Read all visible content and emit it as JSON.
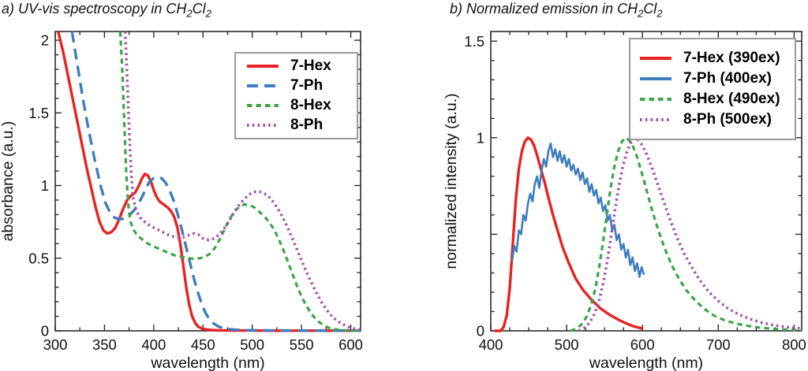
{
  "chart_data": [
    {
      "type": "line",
      "title": "a) UV-vis spectroscopy in CH2Cl2",
      "title_parts": [
        "a) UV-vis spectroscopy in CH",
        "2",
        "Cl",
        "2"
      ],
      "xlabel": "wavelength (nm)",
      "ylabel": "absorbance (a.u.)",
      "xlim": [
        300,
        610
      ],
      "ylim": [
        0,
        2.06
      ],
      "xticks": [
        300,
        350,
        400,
        450,
        500,
        550,
        600
      ],
      "xtick_labels": [
        "300",
        "350",
        "400",
        "450",
        "500",
        "550",
        "600"
      ],
      "yticks": [
        0,
        0.5,
        1,
        1.5,
        2
      ],
      "ytick_labels": [
        "0",
        "0.5",
        "1",
        "1.5",
        "2"
      ],
      "x_minor_step": 25,
      "y_minor_step": 0.1,
      "grid": false,
      "legend_position": "top-right",
      "series": [
        {
          "name": "7-Hex",
          "color": "#e62321",
          "style": "solid",
          "line_width": 3.4,
          "x": [
            303,
            308,
            314,
            320,
            326,
            332,
            337,
            341,
            345,
            349,
            353,
            357,
            361,
            365,
            369,
            373,
            377,
            381,
            385,
            388,
            391,
            394,
            397,
            400,
            403,
            406,
            410,
            414,
            418,
            421,
            424,
            427,
            430,
            433,
            436,
            439,
            442,
            445,
            449,
            454,
            460,
            470,
            485,
            500,
            520,
            550,
            580,
            610
          ],
          "y": [
            2.06,
            1.92,
            1.72,
            1.52,
            1.32,
            1.12,
            0.97,
            0.85,
            0.75,
            0.69,
            0.67,
            0.68,
            0.71,
            0.77,
            0.84,
            0.9,
            0.93,
            0.95,
            1.0,
            1.05,
            1.08,
            1.07,
            1.03,
            0.97,
            0.92,
            0.89,
            0.87,
            0.85,
            0.82,
            0.78,
            0.71,
            0.6,
            0.45,
            0.3,
            0.18,
            0.1,
            0.055,
            0.03,
            0.015,
            0.008,
            0.005,
            0.003,
            0.002,
            0.002,
            0.001,
            0.001,
            0.001,
            0.001
          ]
        },
        {
          "name": "7-Ph",
          "color": "#3e7dbf",
          "style": "dashed",
          "line_width": 3.4,
          "x": [
            317,
            322,
            328,
            334,
            340,
            346,
            351,
            356,
            360,
            364,
            368,
            372,
            376,
            380,
            384,
            388,
            392,
            396,
            400,
            404,
            408,
            412,
            416,
            420,
            424,
            428,
            432,
            436,
            440,
            444,
            448,
            452,
            456,
            460,
            465,
            470,
            476,
            484,
            495,
            510,
            530,
            560,
            610
          ],
          "y": [
            2.06,
            1.85,
            1.6,
            1.38,
            1.18,
            1.0,
            0.88,
            0.81,
            0.78,
            0.77,
            0.77,
            0.78,
            0.8,
            0.83,
            0.87,
            0.92,
            0.98,
            1.03,
            1.05,
            1.06,
            1.05,
            1.02,
            0.97,
            0.9,
            0.81,
            0.71,
            0.6,
            0.49,
            0.38,
            0.28,
            0.2,
            0.13,
            0.085,
            0.055,
            0.032,
            0.02,
            0.012,
            0.007,
            0.004,
            0.003,
            0.002,
            0.001,
            0.001
          ]
        },
        {
          "name": "8-Hex",
          "color": "#3ea449",
          "style": "shortdash",
          "line_width": 3.2,
          "x": [
            366,
            368,
            370,
            372,
            374,
            376,
            379,
            383,
            388,
            394,
            400,
            407,
            414,
            421,
            428,
            435,
            441,
            447,
            452,
            457,
            462,
            467,
            472,
            477,
            482,
            487,
            492,
            497,
            502,
            507,
            512,
            517,
            522,
            527,
            532,
            537,
            542,
            547,
            552,
            557,
            562,
            567,
            572,
            577,
            583,
            590,
            600,
            610
          ],
          "y": [
            2.06,
            1.8,
            1.45,
            1.1,
            0.88,
            0.76,
            0.7,
            0.66,
            0.63,
            0.6,
            0.58,
            0.56,
            0.54,
            0.52,
            0.51,
            0.5,
            0.495,
            0.5,
            0.51,
            0.53,
            0.57,
            0.63,
            0.7,
            0.77,
            0.82,
            0.855,
            0.87,
            0.865,
            0.85,
            0.82,
            0.79,
            0.75,
            0.7,
            0.63,
            0.55,
            0.46,
            0.37,
            0.28,
            0.21,
            0.15,
            0.1,
            0.065,
            0.04,
            0.022,
            0.012,
            0.005,
            0.002,
            0.001
          ]
        },
        {
          "name": "8-Ph",
          "color": "#a650ab",
          "style": "dotted",
          "line_width": 3.6,
          "x": [
            371,
            373,
            375,
            377,
            379,
            382,
            386,
            391,
            397,
            403,
            409,
            415,
            421,
            426,
            431,
            436,
            441,
            446,
            451,
            456,
            461,
            466,
            471,
            476,
            481,
            486,
            491,
            496,
            501,
            506,
            511,
            516,
            521,
            526,
            531,
            536,
            541,
            546,
            551,
            556,
            561,
            566,
            571,
            576,
            581,
            586,
            592,
            598,
            605,
            610
          ],
          "y": [
            2.06,
            1.75,
            1.4,
            1.1,
            0.92,
            0.83,
            0.78,
            0.75,
            0.72,
            0.7,
            0.68,
            0.66,
            0.645,
            0.64,
            0.645,
            0.66,
            0.67,
            0.66,
            0.63,
            0.625,
            0.635,
            0.66,
            0.7,
            0.75,
            0.81,
            0.86,
            0.9,
            0.935,
            0.955,
            0.96,
            0.95,
            0.93,
            0.89,
            0.84,
            0.78,
            0.71,
            0.63,
            0.55,
            0.47,
            0.39,
            0.32,
            0.25,
            0.19,
            0.14,
            0.1,
            0.07,
            0.045,
            0.025,
            0.012,
            0.006
          ]
        }
      ]
    },
    {
      "type": "line",
      "title": "b) Normalized emission in CH2Cl2",
      "title_parts": [
        "b) Normalized emission in CH",
        "2",
        "Cl",
        "2"
      ],
      "xlabel": "wavelength (nm)",
      "ylabel": "normalized intensity (a.u.)",
      "xlim": [
        400,
        810
      ],
      "ylim": [
        0,
        1.55
      ],
      "xticks": [
        400,
        500,
        600,
        700,
        800
      ],
      "xtick_labels": [
        "400",
        "500",
        "600",
        "700",
        "800"
      ],
      "yticks": [
        0,
        0.5,
        1,
        1.5
      ],
      "ytick_labels": [
        "0",
        "",
        "1",
        "1.5"
      ],
      "x_minor_step": 25,
      "y_minor_step": 0.1,
      "grid": false,
      "legend_position": "top-right",
      "series": [
        {
          "name": "7-Hex (390ex)",
          "color": "#e62321",
          "style": "solid",
          "line_width": 3.4,
          "x": [
            405,
            413,
            417,
            421,
            425,
            429,
            433,
            437,
            441,
            445,
            449,
            453,
            457,
            461,
            466,
            471,
            476,
            482,
            488,
            495,
            503,
            512,
            522,
            533,
            545,
            558,
            572,
            587,
            600
          ],
          "y": [
            0.0,
            0.0,
            0.02,
            0.08,
            0.22,
            0.45,
            0.68,
            0.84,
            0.93,
            0.98,
            1.0,
            0.99,
            0.96,
            0.91,
            0.84,
            0.77,
            0.69,
            0.6,
            0.52,
            0.43,
            0.35,
            0.27,
            0.21,
            0.16,
            0.115,
            0.08,
            0.05,
            0.025,
            0.012
          ]
        },
        {
          "name": "7-Ph (400ex)",
          "color": "#3e7dbf",
          "style": "solid",
          "line_width": 2.6,
          "x": [
            428,
            431,
            434,
            437,
            440,
            443,
            446,
            449,
            452,
            455,
            458,
            461,
            464,
            467,
            470,
            473,
            476,
            479,
            482,
            485,
            488,
            491,
            494,
            497,
            500,
            503,
            506,
            509,
            512,
            515,
            518,
            521,
            524,
            527,
            530,
            533,
            536,
            539,
            542,
            545,
            548,
            551,
            554,
            557,
            560,
            563,
            566,
            569,
            572,
            575,
            578,
            581,
            584,
            587,
            590,
            593,
            596,
            599,
            602
          ],
          "y": [
            0.36,
            0.44,
            0.41,
            0.52,
            0.5,
            0.6,
            0.57,
            0.66,
            0.71,
            0.67,
            0.76,
            0.8,
            0.74,
            0.83,
            0.89,
            0.85,
            0.93,
            0.97,
            0.9,
            0.94,
            0.88,
            0.93,
            0.87,
            0.91,
            0.85,
            0.89,
            0.83,
            0.86,
            0.81,
            0.84,
            0.78,
            0.82,
            0.76,
            0.79,
            0.72,
            0.76,
            0.7,
            0.73,
            0.66,
            0.69,
            0.62,
            0.65,
            0.57,
            0.6,
            0.52,
            0.55,
            0.47,
            0.5,
            0.42,
            0.45,
            0.38,
            0.42,
            0.34,
            0.38,
            0.31,
            0.35,
            0.28,
            0.33,
            0.29
          ]
        },
        {
          "name": "8-Hex (490ex)",
          "color": "#3ea449",
          "style": "shortdash",
          "line_width": 3.2,
          "x": [
            505,
            512,
            519,
            526,
            532,
            538,
            543,
            548,
            553,
            558,
            563,
            568,
            573,
            578,
            583,
            588,
            593,
            599,
            606,
            613,
            621,
            629,
            638,
            648,
            658,
            669,
            681,
            694,
            708,
            723,
            738,
            754,
            770,
            787,
            805,
            810
          ],
          "y": [
            0.0,
            0.01,
            0.03,
            0.07,
            0.13,
            0.22,
            0.33,
            0.46,
            0.6,
            0.74,
            0.85,
            0.93,
            0.98,
            1.0,
            0.985,
            0.95,
            0.9,
            0.82,
            0.72,
            0.62,
            0.52,
            0.43,
            0.345,
            0.27,
            0.21,
            0.16,
            0.115,
            0.08,
            0.055,
            0.038,
            0.026,
            0.017,
            0.011,
            0.007,
            0.004,
            0.003
          ]
        },
        {
          "name": "8-Ph (500ex)",
          "color": "#a650ab",
          "style": "dotted",
          "line_width": 3.6,
          "x": [
            516,
            523,
            530,
            537,
            543,
            549,
            554,
            559,
            564,
            569,
            574,
            579,
            584,
            589,
            594,
            600,
            606,
            613,
            620,
            628,
            636,
            645,
            655,
            665,
            676,
            688,
            700,
            713,
            727,
            741,
            756,
            771,
            787,
            805,
            810
          ],
          "y": [
            0.0,
            0.015,
            0.04,
            0.09,
            0.16,
            0.26,
            0.37,
            0.5,
            0.63,
            0.75,
            0.85,
            0.92,
            0.97,
            1.0,
            0.99,
            0.96,
            0.91,
            0.84,
            0.76,
            0.67,
            0.58,
            0.49,
            0.4,
            0.33,
            0.26,
            0.2,
            0.155,
            0.115,
            0.085,
            0.062,
            0.044,
            0.031,
            0.021,
            0.014,
            0.012
          ]
        }
      ]
    }
  ]
}
